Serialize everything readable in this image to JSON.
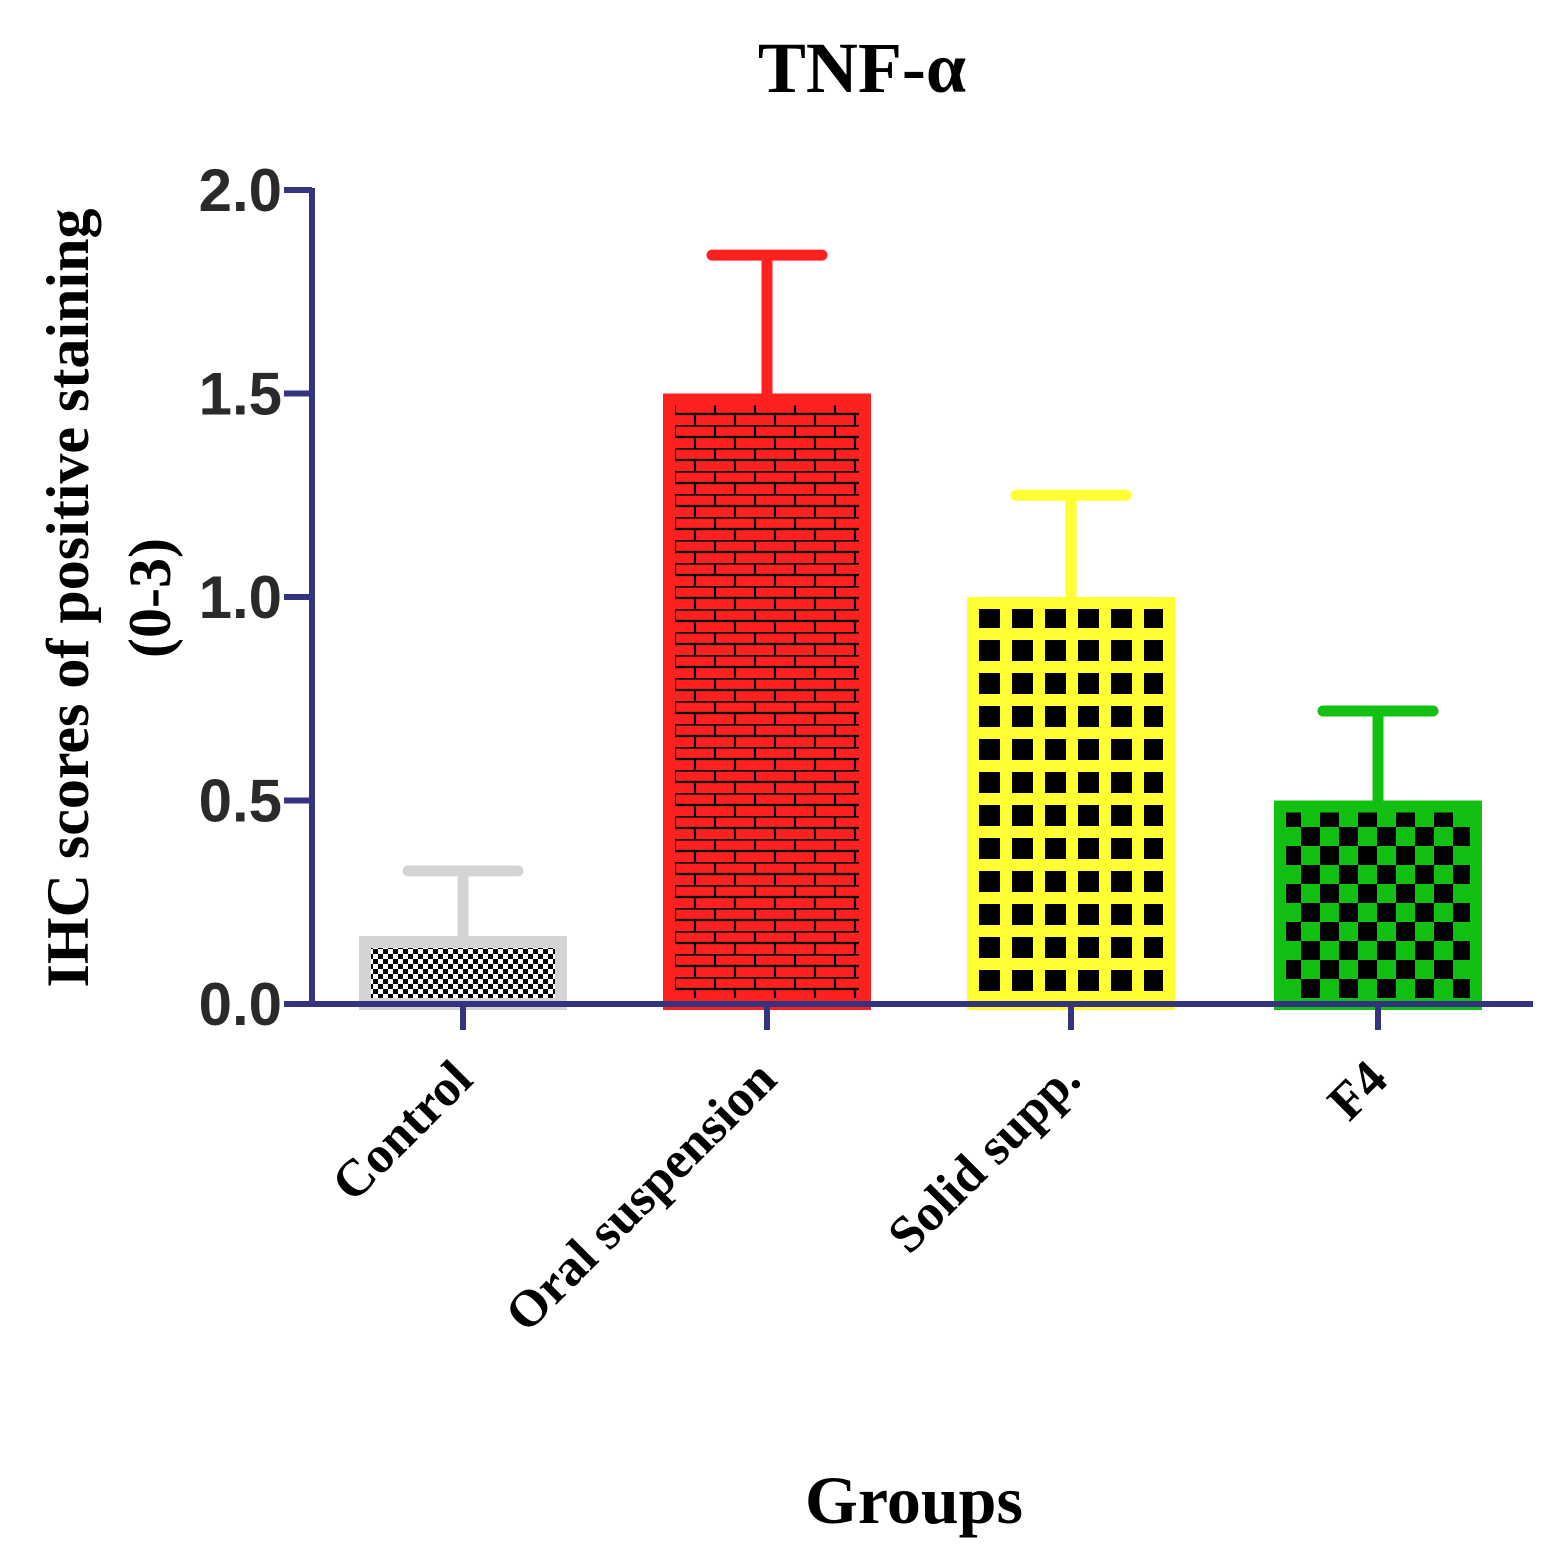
{
  "chart_data": {
    "type": "bar",
    "title": "TNF-α",
    "xlabel": "Groups",
    "ylabel_line1": "IHC scores of positive staining",
    "ylabel_line2": "(0-3)",
    "ylim": [
      0,
      2.0
    ],
    "yticks": [
      "0.0",
      "0.5",
      "1.0",
      "1.5",
      "2.0"
    ],
    "ytick_values": [
      0,
      0.5,
      1.0,
      1.5,
      2.0
    ],
    "categories": [
      "Control",
      "Oral suspension",
      "Solid supp.",
      "F4"
    ],
    "values": [
      0.167,
      1.5,
      1.0,
      0.5
    ],
    "errors": [
      0.16,
      0.34,
      0.25,
      0.22
    ],
    "colors": [
      "#d4d4d4",
      "#ff2020",
      "#ffff33",
      "#12c012"
    ],
    "patterns": [
      "fine-checker",
      "brick",
      "grid",
      "checker"
    ],
    "axis_color": "#333380",
    "grid": false
  }
}
